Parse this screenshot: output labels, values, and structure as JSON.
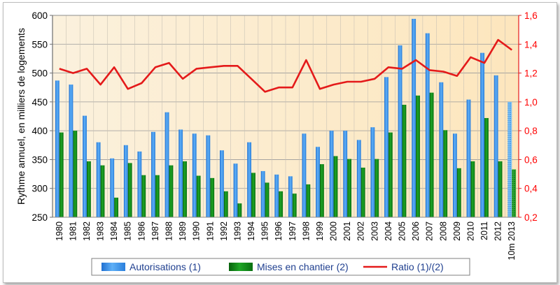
{
  "chart_data": {
    "type": "bar",
    "categories": [
      "1980",
      "1981",
      "1982",
      "1983",
      "1984",
      "1985",
      "1986",
      "1987",
      "1988",
      "1989",
      "1990",
      "1991",
      "1992",
      "1993",
      "1994",
      "1995",
      "1996",
      "1997",
      "1998",
      "1999",
      "2000",
      "2001",
      "2002",
      "2003",
      "2004",
      "2005",
      "2006",
      "2007",
      "2008",
      "2009",
      "2010",
      "2011",
      "2012",
      "10m 2013"
    ],
    "series": [
      {
        "name": "Autorisations (1)",
        "type": "bar",
        "axis": "left",
        "color": "#3b8ee6",
        "values": [
          487,
          480,
          426,
          380,
          352,
          375,
          364,
          398,
          432,
          402,
          395,
          392,
          366,
          343,
          380,
          330,
          324,
          321,
          395,
          372,
          400,
          400,
          384,
          406,
          493,
          548,
          594,
          569,
          484,
          395,
          454,
          535,
          496,
          450
        ]
      },
      {
        "name": "Mises en chantier (2)",
        "type": "bar",
        "axis": "left",
        "color": "#0c7d12",
        "values": [
          397,
          400,
          347,
          340,
          284,
          344,
          323,
          323,
          340,
          347,
          322,
          318,
          295,
          274,
          327,
          310,
          295,
          291,
          307,
          342,
          356,
          351,
          336,
          351,
          397,
          445,
          461,
          466,
          401,
          335,
          347,
          422,
          347,
          333
        ]
      },
      {
        "name": "Ratio (1)/(2)",
        "type": "line",
        "axis": "right",
        "color": "#e41a1a",
        "values": [
          1.23,
          1.2,
          1.23,
          1.12,
          1.24,
          1.09,
          1.13,
          1.24,
          1.27,
          1.16,
          1.23,
          1.24,
          1.25,
          1.25,
          1.16,
          1.07,
          1.1,
          1.1,
          1.29,
          1.09,
          1.12,
          1.14,
          1.14,
          1.16,
          1.24,
          1.23,
          1.29,
          1.22,
          1.21,
          1.18,
          1.31,
          1.27,
          1.43,
          1.36
        ]
      }
    ],
    "ylabel": "Rythme annuel, en milliers de logements",
    "ylim": [
      250,
      600
    ],
    "yticks": [
      "250",
      "300",
      "350",
      "400",
      "450",
      "500",
      "550",
      "600"
    ],
    "y2lim": [
      0.2,
      1.6
    ],
    "y2ticks": [
      "0,2",
      "0,4",
      "0,6",
      "0,8",
      "1,0",
      "1,2",
      "1,4",
      "1,6"
    ],
    "grid": true,
    "legend": [
      "Autorisations (1)",
      "Mises en chantier (2)",
      "Ratio (1)/(2)"
    ],
    "legend_position": "bottom",
    "highlight_last_category": "10m 2013",
    "plot_background": "#fcefd6",
    "ratio_color": "#e41a1a"
  }
}
